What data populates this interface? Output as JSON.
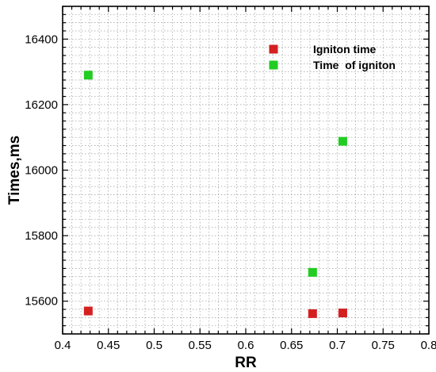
{
  "chart_data": {
    "type": "scatter",
    "title": "",
    "xlabel": "RR",
    "ylabel": "Times,ms",
    "xlim": [
      0.4,
      0.8
    ],
    "ylim": [
      15500,
      16500
    ],
    "x_ticks": [
      0.4,
      0.45,
      0.5,
      0.55,
      0.6,
      0.65,
      0.7,
      0.75,
      0.8
    ],
    "x_tick_labels": [
      "0.4",
      "0.45",
      "0.5",
      "0.55",
      "0.6",
      "0.65",
      "0.7",
      "0.75",
      "0.8"
    ],
    "y_ticks": [
      15600,
      15800,
      16000,
      16200,
      16400
    ],
    "y_tick_labels": [
      "15600",
      "15800",
      "16000",
      "16200",
      "16400"
    ],
    "grid": true,
    "legend_position": "top-right",
    "series": [
      {
        "name": "Igniton time",
        "color": "#d42020",
        "marker": "square",
        "x": [
          0.428,
          0.673,
          0.706
        ],
        "y": [
          15570,
          15562,
          15564
        ]
      },
      {
        "name": "Time  of igniton",
        "color": "#22cc22",
        "marker": "square",
        "x": [
          0.428,
          0.706,
          0.673
        ],
        "y": [
          16290,
          16088,
          15688
        ]
      }
    ]
  }
}
